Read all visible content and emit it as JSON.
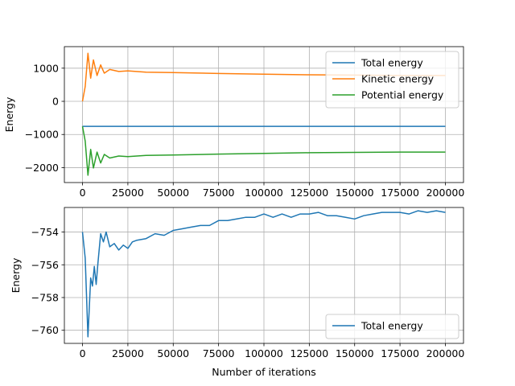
{
  "chart_data": [
    {
      "type": "line",
      "title": "",
      "xlabel": "",
      "ylabel": "Energy",
      "xlim": [
        -10000,
        210000
      ],
      "ylim": [
        -2450,
        1650
      ],
      "grid": true,
      "legend_location": "upper right",
      "x_ticks": [
        0,
        25000,
        50000,
        75000,
        100000,
        125000,
        150000,
        175000,
        200000
      ],
      "x_tick_labels": [
        "0",
        "25000",
        "50000",
        "75000",
        "100000",
        "125000",
        "150000",
        "175000",
        "200000"
      ],
      "y_ticks": [
        -2000,
        -1000,
        0,
        1000
      ],
      "y_tick_labels": [
        "−2000",
        "−1000",
        "0",
        "1000"
      ],
      "series": [
        {
          "name": "Total energy",
          "color": "#1f77b4",
          "x": [
            0,
            50000,
            100000,
            150000,
            200000
          ],
          "y": [
            -754,
            -754,
            -753,
            -753,
            -753
          ]
        },
        {
          "name": "Kinetic energy",
          "color": "#ff7f0e",
          "x": [
            0,
            1500,
            3000,
            4500,
            6000,
            8000,
            10000,
            12000,
            15000,
            20000,
            25000,
            35000,
            50000,
            75000,
            100000,
            125000,
            150000,
            175000,
            200000
          ],
          "y": [
            0,
            450,
            1450,
            700,
            1250,
            780,
            1100,
            850,
            960,
            900,
            920,
            880,
            870,
            840,
            820,
            800,
            790,
            780,
            780
          ]
        },
        {
          "name": "Potential energy",
          "color": "#2ca02c",
          "x": [
            0,
            1500,
            3000,
            4500,
            6000,
            8000,
            10000,
            12000,
            15000,
            20000,
            25000,
            35000,
            50000,
            75000,
            100000,
            125000,
            150000,
            175000,
            200000
          ],
          "y": [
            -754,
            -1200,
            -2230,
            -1450,
            -2010,
            -1530,
            -1860,
            -1600,
            -1710,
            -1650,
            -1670,
            -1630,
            -1620,
            -1590,
            -1570,
            -1550,
            -1540,
            -1530,
            -1530
          ]
        }
      ]
    },
    {
      "type": "line",
      "title": "",
      "xlabel": "Number of iterations",
      "ylabel": "Energy",
      "xlim": [
        -10000,
        210000
      ],
      "ylim": [
        -760.8,
        -752.5
      ],
      "grid": true,
      "legend_location": "lower right",
      "x_ticks": [
        0,
        25000,
        50000,
        75000,
        100000,
        125000,
        150000,
        175000,
        200000
      ],
      "x_tick_labels": [
        "0",
        "25000",
        "50000",
        "75000",
        "100000",
        "125000",
        "150000",
        "175000",
        "200000"
      ],
      "y_ticks": [
        -760,
        -758,
        -756,
        -754
      ],
      "y_tick_labels": [
        "−760",
        "−758",
        "−756",
        "−754"
      ],
      "series": [
        {
          "name": "Total energy",
          "color": "#1f77b4",
          "x": [
            0,
            1500,
            3000,
            4500,
            5500,
            6500,
            7500,
            8500,
            10000,
            11500,
            13000,
            15000,
            17500,
            20000,
            22500,
            25000,
            27500,
            30000,
            35000,
            40000,
            45000,
            50000,
            55000,
            60000,
            65000,
            70000,
            75000,
            80000,
            85000,
            90000,
            95000,
            100000,
            105000,
            110000,
            115000,
            120000,
            125000,
            130000,
            135000,
            140000,
            145000,
            150000,
            155000,
            160000,
            165000,
            170000,
            175000,
            180000,
            185000,
            190000,
            195000,
            200000
          ],
          "y": [
            -754.0,
            -755.6,
            -760.4,
            -756.8,
            -757.3,
            -756.1,
            -757.2,
            -755.9,
            -754.1,
            -754.6,
            -754.0,
            -754.9,
            -754.7,
            -755.1,
            -754.8,
            -755.0,
            -754.6,
            -754.5,
            -754.4,
            -754.1,
            -754.2,
            -753.9,
            -753.8,
            -753.7,
            -753.6,
            -753.6,
            -753.3,
            -753.3,
            -753.2,
            -753.1,
            -753.1,
            -752.9,
            -753.1,
            -752.9,
            -753.1,
            -752.9,
            -752.9,
            -752.8,
            -753.0,
            -753.0,
            -753.1,
            -753.2,
            -753.0,
            -752.9,
            -752.8,
            -752.8,
            -752.8,
            -752.9,
            -752.7,
            -752.8,
            -752.7,
            -752.8
          ]
        }
      ]
    }
  ]
}
